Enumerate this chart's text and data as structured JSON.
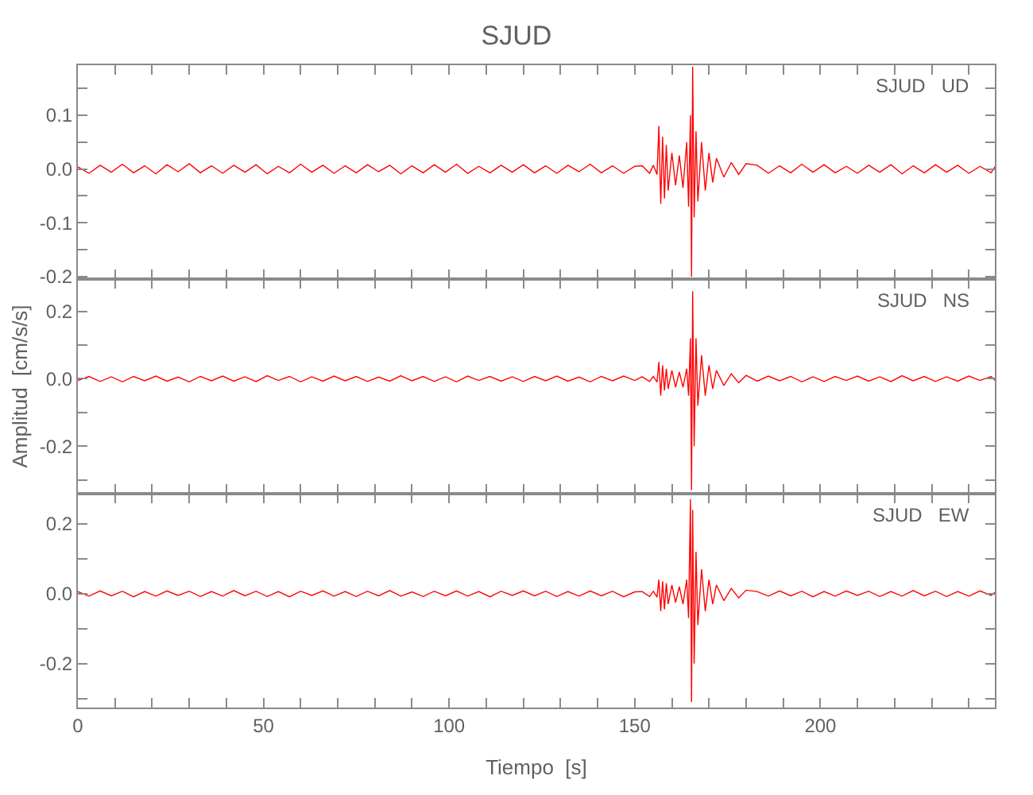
{
  "chart_data": [
    {
      "type": "line",
      "title": "SJUD",
      "annotations": [
        "SJUD   UD"
      ],
      "tick_labels": "y",
      "x": [
        0,
        3,
        6,
        9,
        12,
        15,
        18,
        21,
        24,
        27,
        30,
        33,
        36,
        39,
        42,
        45,
        48,
        51,
        54,
        57,
        60,
        63,
        66,
        69,
        72,
        75,
        78,
        81,
        84,
        87,
        90,
        93,
        96,
        99,
        102,
        105,
        108,
        111,
        114,
        117,
        120,
        123,
        126,
        129,
        132,
        135,
        138,
        141,
        144,
        147,
        150,
        152,
        154,
        155,
        156,
        156.5,
        157,
        157.5,
        158,
        158.5,
        159,
        160,
        161,
        162,
        163,
        164,
        164.5,
        165,
        165.3,
        165.6,
        166,
        166.5,
        167,
        168,
        169,
        170,
        171,
        172,
        174,
        176,
        178,
        180,
        183,
        186,
        189,
        192,
        195,
        198,
        201,
        204,
        207,
        210,
        213,
        216,
        219,
        222,
        225,
        228,
        231,
        234,
        237,
        240,
        243,
        246,
        247
      ],
      "series": [
        {
          "color": "#ff0000",
          "values": [
            0.004,
            -0.008,
            0.007,
            -0.006,
            0.009,
            -0.007,
            0.006,
            -0.009,
            0.008,
            -0.005,
            0.01,
            -0.007,
            0.006,
            -0.008,
            0.007,
            -0.006,
            0.008,
            -0.009,
            0.005,
            -0.007,
            0.009,
            -0.006,
            0.007,
            -0.008,
            0.006,
            -0.007,
            0.008,
            -0.005,
            0.007,
            -0.009,
            0.006,
            -0.007,
            0.008,
            -0.006,
            0.009,
            -0.008,
            0.005,
            -0.007,
            0.007,
            -0.006,
            0.008,
            -0.007,
            0.006,
            -0.008,
            0.007,
            -0.005,
            0.009,
            -0.007,
            0.006,
            -0.008,
            0.005,
            0.006,
            -0.008,
            0.007,
            -0.01,
            0.08,
            -0.065,
            0.06,
            -0.055,
            0.045,
            -0.04,
            0.03,
            -0.03,
            0.025,
            -0.035,
            0.05,
            -0.07,
            0.1,
            -0.2,
            0.19,
            -0.09,
            0.07,
            -0.06,
            0.05,
            -0.04,
            0.03,
            -0.025,
            0.02,
            -0.015,
            0.012,
            -0.01,
            0.01,
            0.007,
            -0.008,
            0.006,
            -0.007,
            0.009,
            -0.006,
            0.008,
            -0.007,
            0.005,
            -0.008,
            0.007,
            -0.006,
            0.008,
            -0.009,
            0.006,
            -0.007,
            0.008,
            -0.006,
            0.007,
            -0.008,
            0.005,
            -0.007,
            0.004
          ]
        }
      ],
      "xlim": [
        0,
        247
      ],
      "xticks": [
        0,
        {
          "value": 10,
          "label": null
        },
        {
          "value": 20,
          "label": null
        },
        {
          "value": 30,
          "label": null
        },
        {
          "value": 40,
          "label": null
        },
        50,
        {
          "value": 60,
          "label": null
        },
        {
          "value": 70,
          "label": null
        },
        {
          "value": 80,
          "label": null
        },
        {
          "value": 90,
          "label": null
        },
        100,
        {
          "value": 110,
          "label": null
        },
        {
          "value": 120,
          "label": null
        },
        {
          "value": 130,
          "label": null
        },
        {
          "value": 140,
          "label": null
        },
        150,
        {
          "value": 160,
          "label": null
        },
        {
          "value": 170,
          "label": null
        },
        {
          "value": 180,
          "label": null
        },
        {
          "value": 190,
          "label": null
        },
        200,
        {
          "value": 210,
          "label": null
        },
        {
          "value": 220,
          "label": null
        },
        {
          "value": 230,
          "label": null
        },
        {
          "value": 240,
          "label": null
        }
      ],
      "ylim": [
        -0.205,
        0.193
      ],
      "yticks": [
        -0.2,
        {
          "value": -0.15,
          "label": null
        },
        -0.1,
        {
          "value": -0.05,
          "label": null
        },
        {
          "value": 0,
          "label": "0.0"
        },
        {
          "value": 0.05,
          "label": null
        },
        0.1,
        {
          "value": 0.15,
          "label": null
        }
      ]
    },
    {
      "type": "line",
      "ylabel": "Amplitud  [cm/s/s]",
      "annotations": [
        "SJUD   NS"
      ],
      "tick_labels": "y",
      "x": [
        0,
        3,
        6,
        9,
        12,
        15,
        18,
        21,
        24,
        27,
        30,
        33,
        36,
        39,
        42,
        45,
        48,
        51,
        54,
        57,
        60,
        63,
        66,
        69,
        72,
        75,
        78,
        81,
        84,
        87,
        90,
        93,
        96,
        99,
        102,
        105,
        108,
        111,
        114,
        117,
        120,
        123,
        126,
        129,
        132,
        135,
        138,
        141,
        144,
        147,
        150,
        152,
        154,
        155,
        156,
        156.5,
        157,
        157.5,
        158,
        158.5,
        159,
        160,
        161,
        162,
        163,
        164,
        164.5,
        165,
        165.3,
        165.6,
        166,
        166.5,
        167,
        168,
        169,
        170,
        171,
        172,
        174,
        176,
        178,
        180,
        183,
        186,
        189,
        192,
        195,
        198,
        201,
        204,
        207,
        210,
        213,
        216,
        219,
        222,
        225,
        228,
        231,
        234,
        237,
        240,
        243,
        246,
        247
      ],
      "series": [
        {
          "color": "#ff0000",
          "values": [
            -0.005,
            0.007,
            -0.008,
            0.006,
            -0.009,
            0.007,
            -0.006,
            0.008,
            -0.007,
            0.005,
            -0.009,
            0.007,
            -0.006,
            0.008,
            -0.007,
            0.006,
            -0.008,
            0.009,
            -0.005,
            0.007,
            -0.009,
            0.006,
            -0.007,
            0.008,
            -0.006,
            0.007,
            -0.008,
            0.005,
            -0.007,
            0.009,
            -0.006,
            0.007,
            -0.008,
            0.006,
            -0.009,
            0.008,
            -0.005,
            0.007,
            -0.007,
            0.006,
            -0.008,
            0.007,
            -0.006,
            0.008,
            -0.007,
            0.005,
            -0.009,
            0.007,
            -0.006,
            0.008,
            -0.005,
            0.006,
            -0.008,
            0.007,
            -0.01,
            0.05,
            -0.05,
            0.04,
            -0.035,
            0.03,
            -0.03,
            0.025,
            -0.025,
            0.02,
            -0.025,
            0.03,
            -0.05,
            0.12,
            -0.33,
            0.26,
            -0.2,
            0.12,
            -0.08,
            0.07,
            -0.05,
            0.04,
            -0.03,
            0.025,
            -0.02,
            0.015,
            -0.012,
            0.01,
            -0.007,
            0.008,
            -0.006,
            0.007,
            -0.009,
            0.006,
            -0.008,
            0.007,
            -0.005,
            0.008,
            -0.007,
            0.006,
            -0.008,
            0.009,
            -0.006,
            0.007,
            -0.008,
            0.006,
            -0.007,
            0.008,
            -0.005,
            0.007,
            -0.004
          ]
        }
      ],
      "xlim": [
        0,
        247
      ],
      "xticks": [
        0,
        {
          "value": 10,
          "label": null
        },
        {
          "value": 20,
          "label": null
        },
        {
          "value": 30,
          "label": null
        },
        {
          "value": 40,
          "label": null
        },
        50,
        {
          "value": 60,
          "label": null
        },
        {
          "value": 70,
          "label": null
        },
        {
          "value": 80,
          "label": null
        },
        {
          "value": 90,
          "label": null
        },
        100,
        {
          "value": 110,
          "label": null
        },
        {
          "value": 120,
          "label": null
        },
        {
          "value": 130,
          "label": null
        },
        {
          "value": 140,
          "label": null
        },
        150,
        {
          "value": 160,
          "label": null
        },
        {
          "value": 170,
          "label": null
        },
        {
          "value": 180,
          "label": null
        },
        {
          "value": 190,
          "label": null
        },
        200,
        {
          "value": 210,
          "label": null
        },
        {
          "value": 220,
          "label": null
        },
        {
          "value": 230,
          "label": null
        },
        {
          "value": 240,
          "label": null
        }
      ],
      "ylim": [
        -0.34,
        0.295
      ],
      "yticks": [
        {
          "value": -0.3,
          "label": null
        },
        -0.2,
        {
          "value": -0.1,
          "label": null
        },
        {
          "value": 0,
          "label": "0.0"
        },
        {
          "value": 0.1,
          "label": null
        },
        0.2
      ]
    },
    {
      "type": "line",
      "xlabel": "Tiempo  [s]",
      "annotations": [
        "SJUD   EW"
      ],
      "x": [
        0,
        3,
        6,
        9,
        12,
        15,
        18,
        21,
        24,
        27,
        30,
        33,
        36,
        39,
        42,
        45,
        48,
        51,
        54,
        57,
        60,
        63,
        66,
        69,
        72,
        75,
        78,
        81,
        84,
        87,
        90,
        93,
        96,
        99,
        102,
        105,
        108,
        111,
        114,
        117,
        120,
        123,
        126,
        129,
        132,
        135,
        138,
        141,
        144,
        147,
        150,
        152,
        154,
        155,
        156,
        156.5,
        157,
        157.5,
        158,
        158.5,
        159,
        160,
        161,
        162,
        163,
        164,
        164.5,
        165,
        165.3,
        165.6,
        166,
        166.5,
        167,
        168,
        169,
        170,
        171,
        172,
        174,
        176,
        178,
        180,
        183,
        186,
        189,
        192,
        195,
        198,
        201,
        204,
        207,
        210,
        213,
        216,
        219,
        222,
        225,
        228,
        231,
        234,
        237,
        240,
        243,
        246,
        247
      ],
      "series": [
        {
          "color": "#ff0000",
          "values": [
            0.006,
            -0.007,
            0.008,
            -0.006,
            0.007,
            -0.009,
            0.006,
            -0.007,
            0.008,
            -0.005,
            0.007,
            -0.008,
            0.006,
            -0.007,
            0.009,
            -0.006,
            0.007,
            -0.008,
            0.006,
            -0.009,
            0.007,
            -0.005,
            0.008,
            -0.007,
            0.006,
            -0.008,
            0.007,
            -0.006,
            0.009,
            -0.007,
            0.005,
            -0.008,
            0.007,
            -0.006,
            0.008,
            -0.007,
            0.006,
            -0.009,
            0.007,
            -0.005,
            0.008,
            -0.006,
            0.007,
            -0.008,
            0.006,
            -0.007,
            0.008,
            -0.006,
            0.007,
            -0.009,
            0.005,
            0.006,
            -0.008,
            0.007,
            -0.01,
            0.04,
            -0.05,
            0.035,
            -0.045,
            0.03,
            -0.03,
            0.025,
            -0.025,
            0.02,
            -0.03,
            0.04,
            -0.07,
            0.27,
            -0.31,
            0.24,
            -0.2,
            0.12,
            -0.09,
            0.07,
            -0.05,
            0.04,
            -0.03,
            0.025,
            -0.02,
            0.015,
            -0.012,
            0.01,
            0.006,
            -0.007,
            0.008,
            -0.006,
            0.007,
            -0.009,
            0.006,
            -0.007,
            0.008,
            -0.005,
            0.007,
            -0.008,
            0.006,
            -0.007,
            0.009,
            -0.006,
            0.007,
            -0.008,
            0.006,
            -0.007,
            0.008,
            -0.005,
            0.004
          ]
        }
      ],
      "xlim": [
        0,
        247
      ],
      "xticks": [
        0,
        {
          "value": 10,
          "label": null
        },
        {
          "value": 20,
          "label": null
        },
        {
          "value": 30,
          "label": null
        },
        {
          "value": 40,
          "label": null
        },
        50,
        {
          "value": 60,
          "label": null
        },
        {
          "value": 70,
          "label": null
        },
        {
          "value": 80,
          "label": null
        },
        {
          "value": 90,
          "label": null
        },
        100,
        {
          "value": 110,
          "label": null
        },
        {
          "value": 120,
          "label": null
        },
        {
          "value": 130,
          "label": null
        },
        {
          "value": 140,
          "label": null
        },
        150,
        {
          "value": 160,
          "label": null
        },
        {
          "value": 170,
          "label": null
        },
        {
          "value": 180,
          "label": null
        },
        {
          "value": 190,
          "label": null
        },
        200,
        {
          "value": 210,
          "label": null
        },
        {
          "value": 220,
          "label": null
        },
        {
          "value": 230,
          "label": null
        },
        {
          "value": 240,
          "label": null
        }
      ],
      "ylim": [
        -0.326,
        0.287
      ],
      "yticks": [
        {
          "value": -0.3,
          "label": null
        },
        -0.2,
        {
          "value": -0.1,
          "label": null
        },
        {
          "value": 0,
          "label": "0.0"
        },
        {
          "value": 0.1,
          "label": null
        },
        0.2
      ]
    }
  ]
}
